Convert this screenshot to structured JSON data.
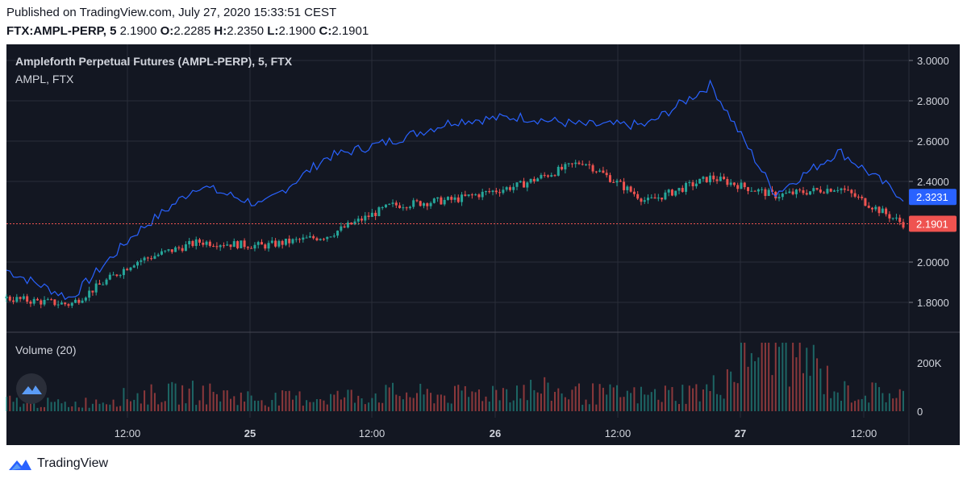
{
  "header": {
    "published": "Published on TradingView.com, July 27, 2020 15:33:51 CEST",
    "symbol": "FTX:AMPL-PERP, 5",
    "last": "2.1900",
    "o_label": "O:",
    "o_val": "2.2285",
    "h_label": "H:",
    "h_val": "2.2350",
    "l_label": "L:",
    "l_val": "2.1900",
    "c_label": "C:",
    "c_val": "2.1901"
  },
  "legend": {
    "main": "Ampleforth Perpetual Futures (AMPL-PERP), 5, FTX",
    "compare": "AMPL, FTX",
    "volume": "Volume (20)"
  },
  "price_axis": {
    "ticks": [
      "3.0000",
      "2.8000",
      "2.6000",
      "2.4000",
      "2.0000",
      "1.8000"
    ],
    "tag_blue": "2.3231",
    "tag_red": "2.1901"
  },
  "volume_axis": {
    "ticks": [
      "200K",
      "0"
    ]
  },
  "time_axis": {
    "labels": [
      {
        "text": "12:00",
        "bold": false
      },
      {
        "text": "25",
        "bold": true
      },
      {
        "text": "12:00",
        "bold": false
      },
      {
        "text": "26",
        "bold": true
      },
      {
        "text": "12:00",
        "bold": false
      },
      {
        "text": "27",
        "bold": true
      },
      {
        "text": "12:00",
        "bold": false
      }
    ]
  },
  "footer": {
    "brand": "TradingView"
  },
  "colors": {
    "background": "#131722",
    "grid": "#2a2e39",
    "up": "#26a69a",
    "down": "#ef5350",
    "compare_line": "#2962ff",
    "axis_text": "#d1d4dc"
  },
  "chart_data": {
    "type": "line",
    "title": "Ampleforth Perpetual Futures (AMPL-PERP), 5, FTX",
    "x": [
      "Jul 24 06:00",
      "Jul 24 12:00",
      "Jul 24 18:00",
      "Jul 25 00:00",
      "Jul 25 06:00",
      "Jul 25 12:00",
      "Jul 25 18:00",
      "Jul 26 00:00",
      "Jul 26 06:00",
      "Jul 26 12:00",
      "Jul 26 18:00",
      "Jul 27 00:00",
      "Jul 27 06:00",
      "Jul 27 12:00",
      "Jul 27 15:30"
    ],
    "series": [
      {
        "name": "AMPL-PERP",
        "values": [
          1.82,
          1.79,
          2.0,
          2.1,
          2.08,
          2.13,
          2.28,
          2.31,
          2.38,
          2.5,
          2.3,
          2.42,
          2.33,
          2.37,
          2.19
        ]
      },
      {
        "name": "AMPL, FTX",
        "values": [
          1.96,
          1.82,
          2.14,
          2.38,
          2.28,
          2.52,
          2.6,
          2.7,
          2.72,
          2.68,
          2.68,
          2.88,
          2.34,
          2.55,
          2.32
        ]
      }
    ],
    "volume": [
      12,
      8,
      18,
      22,
      14,
      16,
      20,
      18,
      26,
      20,
      18,
      24,
      95,
      22,
      20
    ],
    "ylim": [
      1.66,
      3.08
    ],
    "volume_max_label": "200K"
  }
}
